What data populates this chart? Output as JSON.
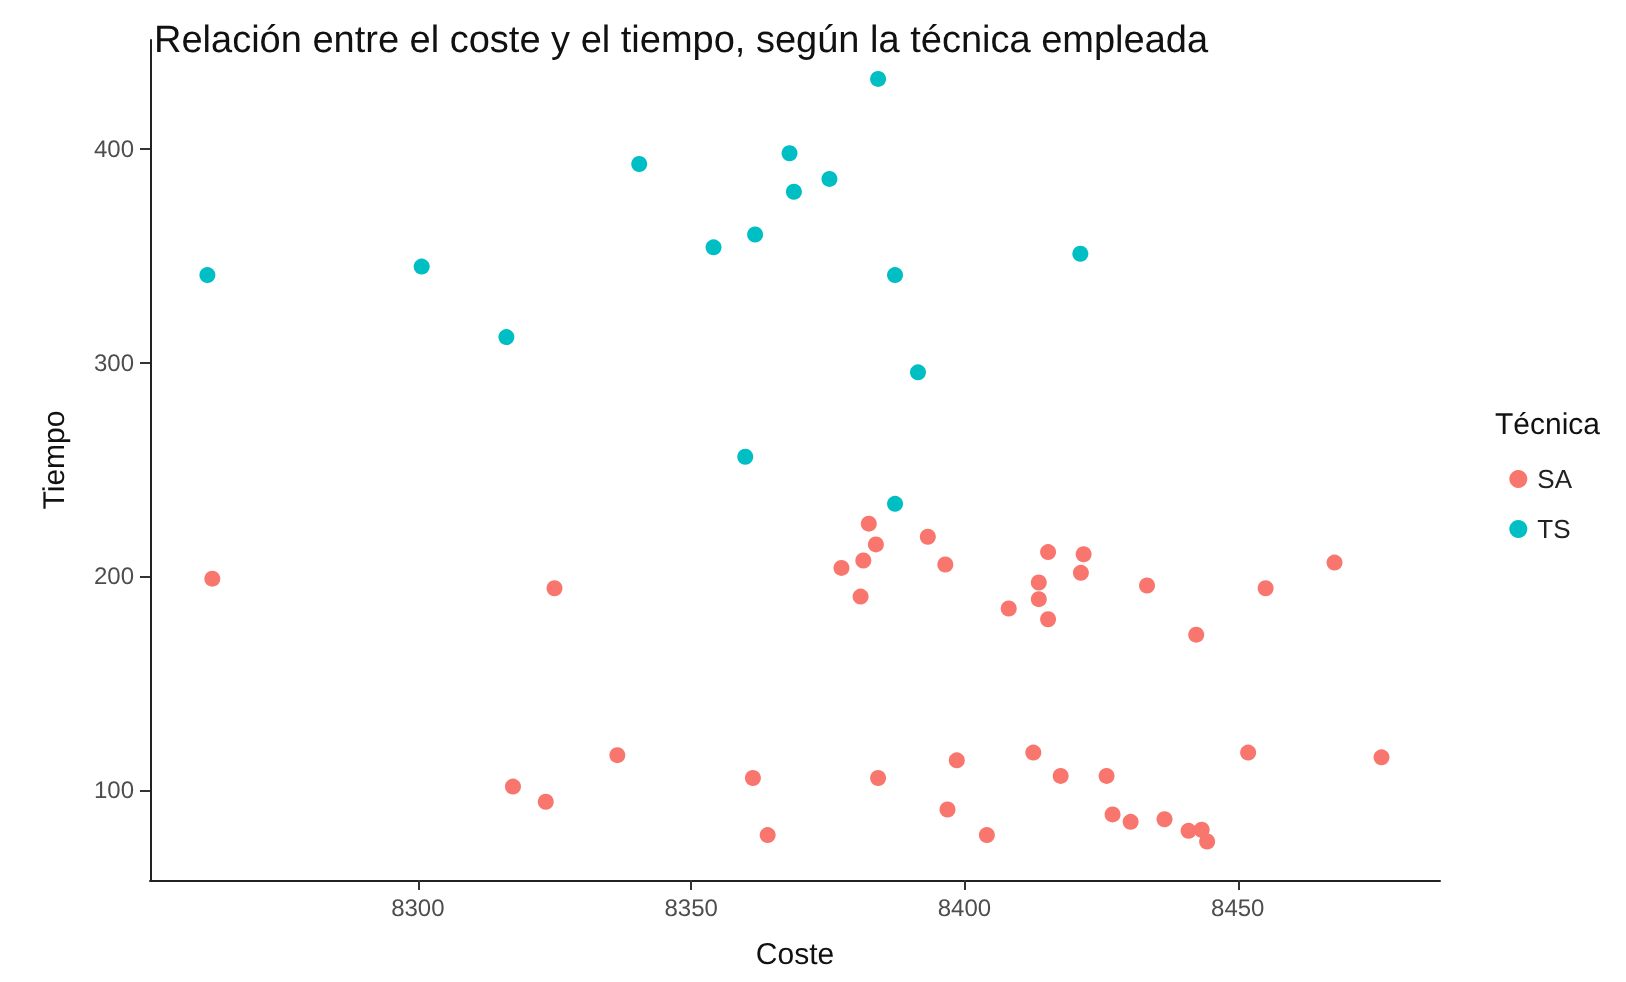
{
  "chart_data": {
    "type": "scatter",
    "title": "Relación entre el coste y el tiempo, según la técnica empleada",
    "xlabel": "Coste",
    "ylabel": "Tiempo",
    "legend_title": "Técnica",
    "legend": "right",
    "grid": false,
    "marker": "circle",
    "xlim": [
      8251,
      8487
    ],
    "xticks": [
      8300,
      8350,
      8400,
      8450
    ],
    "ylim": [
      58,
      451
    ],
    "yticks": [
      100,
      200,
      300,
      400
    ],
    "series": [
      {
        "name": "SA",
        "color": "#f8766d",
        "x": [
          8262.4,
          8325,
          8317.4,
          8323.4,
          8336.5,
          8361.3,
          8364,
          8382.5,
          8383.8,
          8381.5,
          8377.5,
          8381,
          8393.3,
          8396.5,
          8408.1,
          8415.3,
          8413.6,
          8413.6,
          8415.3,
          8421.8,
          8421.3,
          8433.4,
          8442.4,
          8455.1,
          8467.7,
          8384.2,
          8398.6,
          8396.9,
          8404.1,
          8412.6,
          8417.6,
          8426,
          8427.1,
          8430.4,
          8436.6,
          8441,
          8443.4,
          8444.4,
          8451.9,
          8476.3
        ],
        "values": [
          199,
          194.5,
          101.7,
          94.6,
          116.4,
          105.7,
          79,
          224.7,
          215,
          207.5,
          204,
          190.6,
          218.6,
          205.6,
          185,
          211.4,
          197.2,
          189.4,
          180,
          210.4,
          201.7,
          195.8,
          172.8,
          194.5,
          206.5,
          105.7,
          114,
          91,
          79,
          117.6,
          106.7,
          106.7,
          88.7,
          85.2,
          86.4,
          81,
          81.5,
          76,
          117.6,
          115.4
        ]
      },
      {
        "name": "TS",
        "color": "#00bfc4",
        "x": [
          8261.5,
          8300.7,
          8316.2,
          8340.5,
          8354.1,
          8361.7,
          8368,
          8368.8,
          8359.9,
          8384.2,
          8375.3,
          8387.3,
          8391.5,
          8421.2,
          8387.3
        ],
        "values": [
          341,
          345,
          312,
          393,
          354,
          360,
          398,
          380,
          256,
          432.8,
          386,
          341,
          295.5,
          351,
          234
        ]
      }
    ]
  }
}
